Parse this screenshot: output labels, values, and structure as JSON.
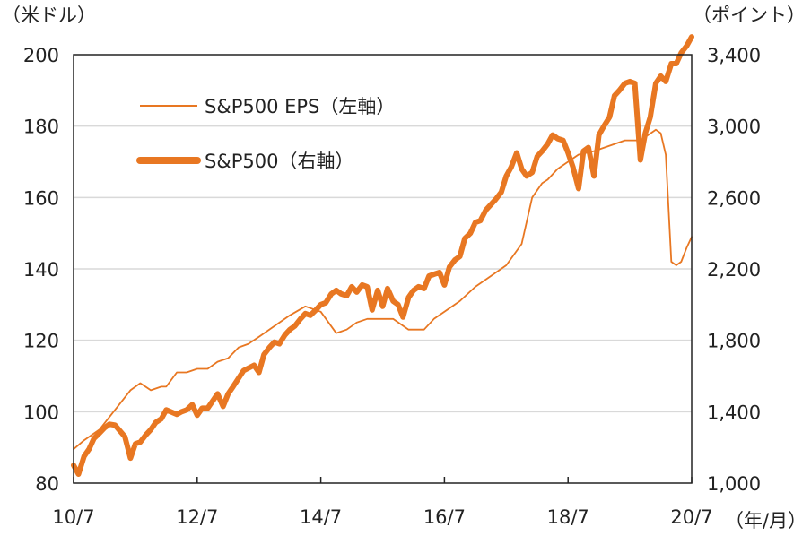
{
  "chart_data": {
    "type": "line",
    "left_axis_unit": "（米ドル）",
    "right_axis_unit": "（ポイント）",
    "x_axis_unit": "（年/月）",
    "x_tick_labels": [
      "10/7",
      "12/7",
      "14/7",
      "16/7",
      "18/7",
      "20/7"
    ],
    "x_range": [
      2010.5,
      2020.5
    ],
    "left_ylim": [
      80,
      200
    ],
    "left_yticks": [
      "80",
      "100",
      "120",
      "140",
      "160",
      "180",
      "200"
    ],
    "right_ylim": [
      1000,
      3400
    ],
    "right_yticks": [
      "1,000",
      "1,400",
      "1,800",
      "2,200",
      "2,600",
      "3,000",
      "3,400"
    ],
    "grid": true,
    "legend_position": "top-left",
    "colors": {
      "series": "#E87722",
      "grid": "#d9d9d9",
      "axis": "#222222"
    },
    "series": [
      {
        "name": "S&P500 EPS（左軸）",
        "axis": "left",
        "line": "thin",
        "x": [
          2010.5,
          2010.67,
          2010.92,
          2011.17,
          2011.42,
          2011.58,
          2011.75,
          2011.92,
          2012.0,
          2012.17,
          2012.33,
          2012.5,
          2012.67,
          2012.83,
          2013.0,
          2013.17,
          2013.33,
          2013.5,
          2013.75,
          2014.0,
          2014.25,
          2014.5,
          2014.75,
          2014.92,
          2015.08,
          2015.25,
          2015.42,
          2015.67,
          2015.92,
          2016.17,
          2016.33,
          2016.5,
          2016.75,
          2017.0,
          2017.25,
          2017.5,
          2017.75,
          2017.92,
          2018.08,
          2018.17,
          2018.33,
          2018.67,
          2018.92,
          2019.17,
          2019.42,
          2019.67,
          2019.92,
          2020.0,
          2020.08,
          2020.17,
          2020.25,
          2020.33,
          2020.42,
          2020.5
        ],
        "y": [
          89.5,
          92,
          95,
          100.5,
          106,
          108,
          106,
          107,
          107,
          111,
          111,
          112,
          112,
          114,
          115,
          118,
          119,
          121,
          124,
          127,
          129.5,
          128,
          122,
          123,
          125,
          126,
          126,
          126,
          123,
          123,
          126,
          128,
          131,
          135,
          138,
          141,
          147,
          160,
          164,
          165,
          168,
          172,
          173,
          174.5,
          176,
          176,
          179,
          178,
          172,
          142,
          141,
          142,
          146,
          149
        ]
      },
      {
        "name": "S&P500（右軸）",
        "axis": "right",
        "line": "thick",
        "x": [
          2010.5,
          2010.58,
          2010.67,
          2010.75,
          2010.83,
          2010.92,
          2011.0,
          2011.08,
          2011.17,
          2011.33,
          2011.42,
          2011.5,
          2011.58,
          2011.67,
          2011.75,
          2011.83,
          2011.92,
          2012.0,
          2012.17,
          2012.25,
          2012.33,
          2012.42,
          2012.5,
          2012.58,
          2012.67,
          2012.75,
          2012.83,
          2012.92,
          2013.0,
          2013.08,
          2013.25,
          2013.42,
          2013.5,
          2013.58,
          2013.67,
          2013.75,
          2013.83,
          2013.92,
          2014.0,
          2014.08,
          2014.17,
          2014.25,
          2014.33,
          2014.42,
          2014.5,
          2014.58,
          2014.67,
          2014.75,
          2014.83,
          2014.92,
          2015.0,
          2015.08,
          2015.17,
          2015.25,
          2015.33,
          2015.42,
          2015.5,
          2015.58,
          2015.67,
          2015.75,
          2015.83,
          2015.92,
          2016.0,
          2016.08,
          2016.17,
          2016.25,
          2016.33,
          2016.42,
          2016.5,
          2016.58,
          2016.67,
          2016.75,
          2016.83,
          2016.92,
          2017.0,
          2017.08,
          2017.17,
          2017.25,
          2017.33,
          2017.42,
          2017.5,
          2017.58,
          2017.67,
          2017.75,
          2017.83,
          2017.92,
          2018.0,
          2018.08,
          2018.17,
          2018.25,
          2018.33,
          2018.42,
          2018.5,
          2018.58,
          2018.67,
          2018.75,
          2018.83,
          2018.92,
          2019.0,
          2019.08,
          2019.17,
          2019.25,
          2019.33,
          2019.42,
          2019.5,
          2019.58,
          2019.67,
          2019.75,
          2019.83,
          2019.92,
          2020.0,
          2020.08,
          2020.17,
          2020.25,
          2020.33,
          2020.42,
          2020.5
        ],
        "y": [
          1100,
          1050,
          1150,
          1190,
          1250,
          1280,
          1310,
          1330,
          1325,
          1260,
          1140,
          1220,
          1230,
          1270,
          1300,
          1340,
          1360,
          1410,
          1385,
          1400,
          1410,
          1440,
          1380,
          1420,
          1420,
          1460,
          1500,
          1430,
          1500,
          1540,
          1630,
          1660,
          1620,
          1720,
          1760,
          1790,
          1780,
          1830,
          1860,
          1880,
          1920,
          1950,
          1940,
          1970,
          2000,
          2010,
          2060,
          2080,
          2060,
          2050,
          2100,
          2070,
          2110,
          2100,
          1970,
          2080,
          1990,
          2090,
          2020,
          2000,
          1930,
          2040,
          2080,
          2100,
          2090,
          2160,
          2170,
          2180,
          2110,
          2210,
          2250,
          2270,
          2370,
          2400,
          2460,
          2470,
          2530,
          2560,
          2590,
          2630,
          2720,
          2770,
          2850,
          2760,
          2720,
          2740,
          2830,
          2860,
          2900,
          2950,
          2930,
          2920,
          2850,
          2770,
          2650,
          2860,
          2880,
          2720,
          2950,
          3000,
          3050,
          3170,
          3200,
          3240,
          3250,
          3240,
          2810,
          2960,
          3050,
          3240,
          3280,
          3250,
          3350,
          3350,
          3410,
          3450,
          3500
        ]
      }
    ]
  }
}
